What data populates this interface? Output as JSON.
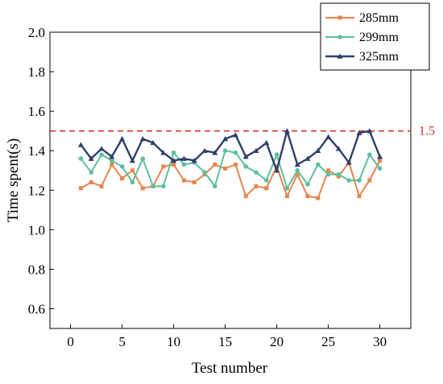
{
  "chart_data": {
    "type": "line",
    "xlabel": "Test number",
    "ylabel": "Time spent(s)",
    "xlim": [
      -2,
      33
    ],
    "ylim": [
      0.5,
      2.0
    ],
    "xticks": [
      0,
      5,
      10,
      15,
      20,
      25,
      30
    ],
    "yticks": [
      0.6,
      0.8,
      1.0,
      1.2,
      1.4,
      1.6,
      1.8,
      2.0
    ],
    "x": [
      1,
      2,
      3,
      4,
      5,
      6,
      7,
      8,
      9,
      10,
      11,
      12,
      13,
      14,
      15,
      16,
      17,
      18,
      19,
      20,
      21,
      22,
      23,
      24,
      25,
      26,
      27,
      28,
      29,
      30
    ],
    "series": [
      {
        "name": "285mm",
        "color": "#E8844E",
        "marker": "square",
        "values": [
          1.21,
          1.24,
          1.22,
          1.33,
          1.26,
          1.3,
          1.21,
          1.22,
          1.32,
          1.33,
          1.25,
          1.24,
          1.28,
          1.33,
          1.31,
          1.33,
          1.17,
          1.22,
          1.21,
          1.32,
          1.17,
          1.28,
          1.17,
          1.16,
          1.3,
          1.27,
          1.34,
          1.17,
          1.25,
          1.35
        ]
      },
      {
        "name": "299mm",
        "color": "#5DC09A",
        "marker": "circle",
        "values": [
          1.36,
          1.29,
          1.38,
          1.35,
          1.32,
          1.24,
          1.36,
          1.22,
          1.22,
          1.39,
          1.33,
          1.34,
          1.29,
          1.22,
          1.4,
          1.39,
          1.32,
          1.29,
          1.25,
          1.38,
          1.21,
          1.3,
          1.23,
          1.33,
          1.28,
          1.28,
          1.25,
          1.25,
          1.38,
          1.31
        ]
      },
      {
        "name": "325mm",
        "color": "#2F3E6B",
        "marker": "triangle",
        "values": [
          1.43,
          1.36,
          1.41,
          1.37,
          1.46,
          1.35,
          1.46,
          1.44,
          1.39,
          1.35,
          1.36,
          1.35,
          1.4,
          1.39,
          1.46,
          1.48,
          1.37,
          1.4,
          1.44,
          1.3,
          1.5,
          1.33,
          1.36,
          1.4,
          1.47,
          1.41,
          1.34,
          1.49,
          1.5,
          1.37
        ]
      }
    ],
    "reference_line": {
      "y": 1.5,
      "label": "1.5",
      "color": "#D9322B",
      "style": "dashed"
    },
    "legend_position": "top-right",
    "grid": false
  }
}
